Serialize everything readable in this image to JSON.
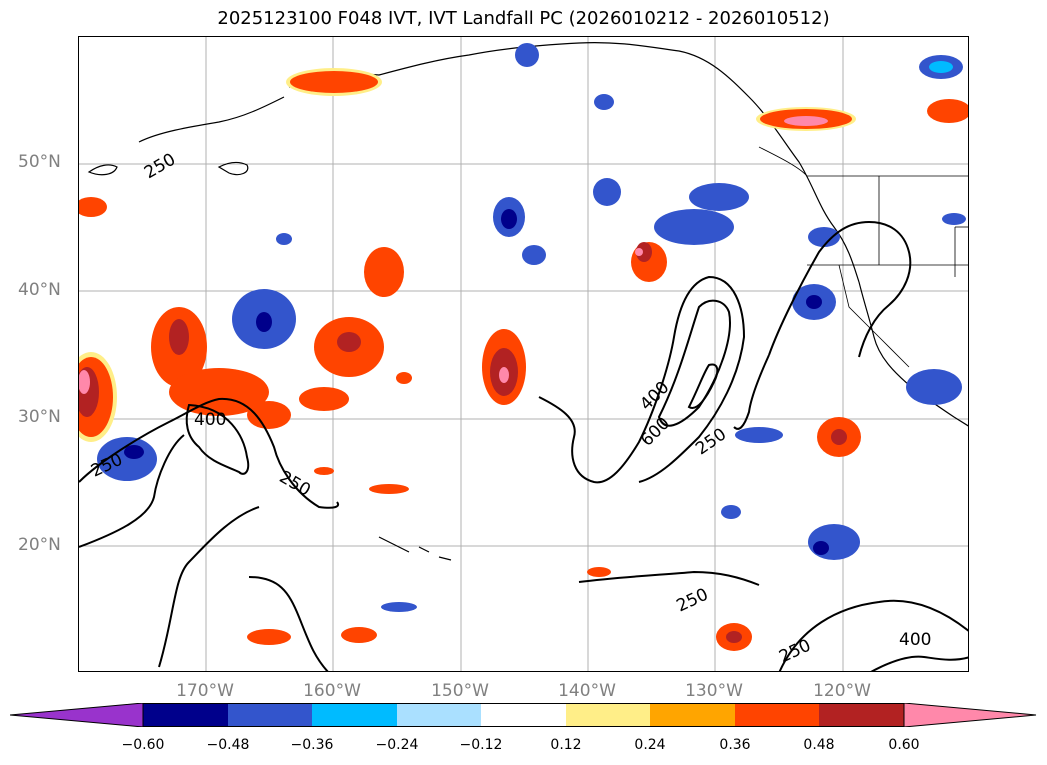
{
  "title": "2025123100 F048 IVT, IVT Landfall PC (2026010212 - 2026010512)",
  "map": {
    "lat_labels": [
      "50°N",
      "40°N",
      "30°N",
      "20°N"
    ],
    "lon_labels": [
      "170°W",
      "160°W",
      "150°W",
      "140°W",
      "130°W",
      "120°W"
    ],
    "contour_levels_shown": [
      "250",
      "400",
      "600"
    ],
    "extent": {
      "lon_min": -180,
      "lon_max": -110,
      "lat_min": 10,
      "lat_max": 60
    }
  },
  "colorbar": {
    "ticks": [
      "−0.60",
      "−0.48",
      "−0.36",
      "−0.24",
      "−0.12",
      "0.12",
      "0.24",
      "0.36",
      "0.48",
      "0.60"
    ],
    "colors": [
      "#9933cc",
      "#00008b",
      "#3355cc",
      "#00bbff",
      "#aae0ff",
      "#ffffff",
      "#ffee88",
      "#ffa500",
      "#ff4400",
      "#b22222",
      "#ff88aa"
    ]
  }
}
